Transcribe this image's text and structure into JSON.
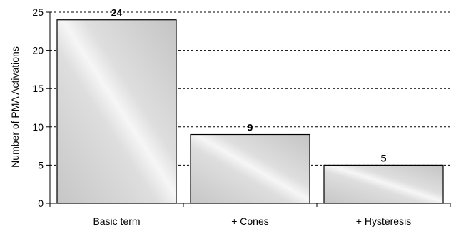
{
  "chart_data": {
    "type": "bar",
    "categories": [
      "Basic term",
      "+ Cones",
      "+ Hysteresis"
    ],
    "values": [
      24,
      9,
      5
    ],
    "data_labels": [
      "24",
      "9",
      "5"
    ],
    "title": "",
    "xlabel": "",
    "ylabel": "Number of PMA Activations",
    "ylim": [
      0,
      25
    ],
    "yticks": [
      0,
      5,
      10,
      15,
      20,
      25
    ],
    "grid": "horizontal dashed",
    "bar_fill": [
      "#c8c8c8",
      "#f4f4f4",
      "#c8c8c8"
    ],
    "bar_edge": "#000000"
  }
}
